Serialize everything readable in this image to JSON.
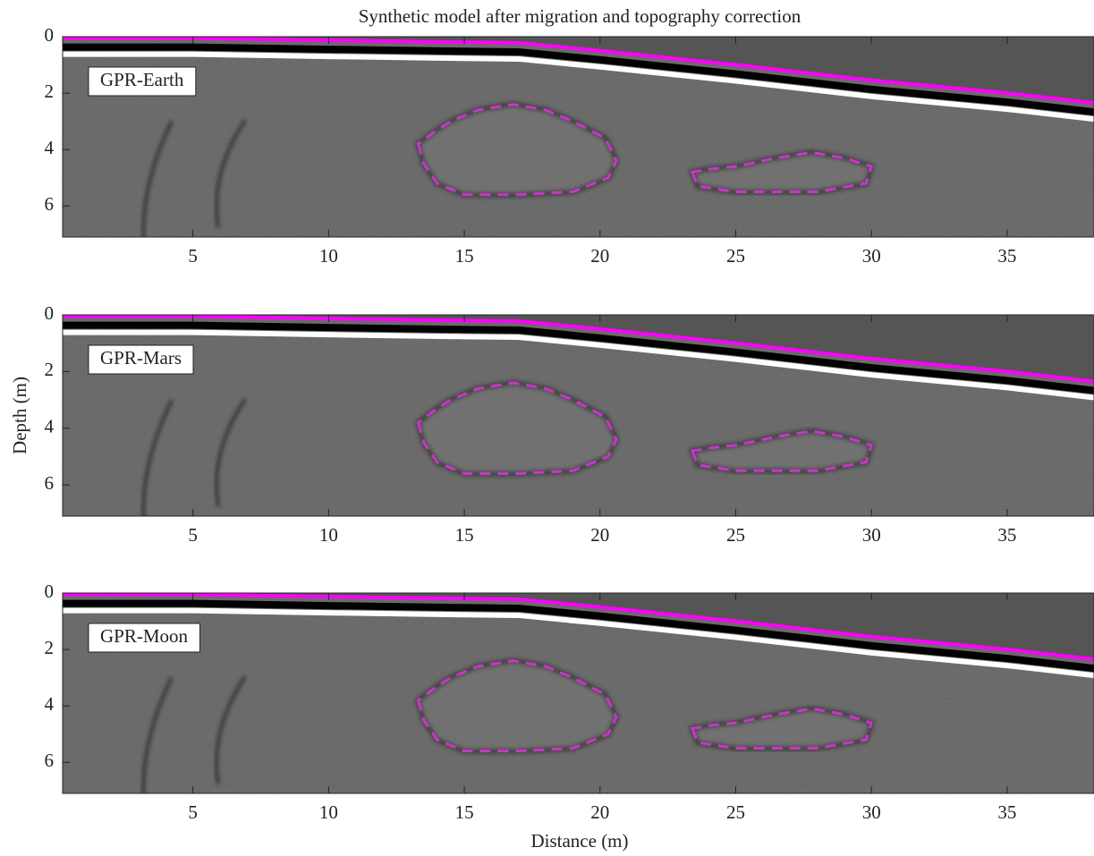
{
  "chart_data": [
    {
      "type": "radargram",
      "title": "Synthetic model after migration and topography correction",
      "label": "GPR-Earth",
      "xlim": [
        0.2,
        38.2
      ],
      "ylim": [
        0,
        7.1
      ],
      "yreverse": true,
      "xticks": [
        5,
        10,
        15,
        20,
        25,
        30,
        35
      ],
      "yticks": [
        0,
        2,
        4,
        6
      ],
      "surface": {
        "color": "#ff00ff",
        "x": [
          0.2,
          5,
          10,
          15,
          17,
          20,
          25,
          30,
          35,
          38.2
        ],
        "y": [
          0.05,
          0.05,
          0.13,
          0.2,
          0.22,
          0.5,
          1.0,
          1.55,
          2.0,
          2.35
        ]
      },
      "outlines": [
        {
          "color": "#cc33cc",
          "x": [
            13.3,
            13.5,
            14,
            15,
            17,
            19,
            20.3,
            20.6,
            20.2,
            19,
            18,
            16.8,
            15.5,
            14.5,
            14
          ],
          "y": [
            3.8,
            4.5,
            5.2,
            5.6,
            5.6,
            5.5,
            5,
            4.4,
            3.6,
            3.0,
            2.6,
            2.4,
            2.6,
            3.0,
            3.3
          ]
        },
        {
          "color": "#cc33cc",
          "x": [
            23.4,
            23.6,
            25,
            28,
            29.8,
            30,
            29,
            27.8,
            26.5,
            25,
            24
          ],
          "y": [
            4.8,
            5.3,
            5.5,
            5.5,
            5.2,
            4.6,
            4.3,
            4.1,
            4.3,
            4.6,
            4.7
          ]
        }
      ]
    },
    {
      "type": "radargram",
      "label": "GPR-Mars",
      "ylabel": "Depth (m)",
      "xlim": [
        0.2,
        38.2
      ],
      "ylim": [
        0,
        7.1
      ],
      "yreverse": true,
      "xticks": [
        5,
        10,
        15,
        20,
        25,
        30,
        35
      ],
      "yticks": [
        0,
        2,
        4,
        6
      ],
      "surface": {
        "color": "#ff00ff",
        "x": [
          0.2,
          5,
          10,
          15,
          17,
          20,
          25,
          30,
          35,
          38.2
        ],
        "y": [
          0.05,
          0.05,
          0.13,
          0.2,
          0.22,
          0.5,
          1.0,
          1.55,
          2.0,
          2.35
        ]
      },
      "outlines": [
        {
          "color": "#cc33cc",
          "x": [
            13.3,
            13.5,
            14,
            15,
            17,
            19,
            20.3,
            20.6,
            20.2,
            19,
            18,
            16.8,
            15.5,
            14.5,
            14
          ],
          "y": [
            3.8,
            4.5,
            5.2,
            5.6,
            5.6,
            5.5,
            5,
            4.4,
            3.6,
            3.0,
            2.6,
            2.4,
            2.6,
            3.0,
            3.3
          ]
        },
        {
          "color": "#cc33cc",
          "x": [
            23.4,
            23.6,
            25,
            28,
            29.8,
            30,
            29,
            27.8,
            26.5,
            25,
            24
          ],
          "y": [
            4.8,
            5.3,
            5.5,
            5.5,
            5.2,
            4.6,
            4.3,
            4.1,
            4.3,
            4.6,
            4.7
          ]
        }
      ]
    },
    {
      "type": "radargram",
      "label": "GPR-Moon",
      "xlabel": "Distance (m)",
      "xlim": [
        0.2,
        38.2
      ],
      "ylim": [
        0,
        7.1
      ],
      "yreverse": true,
      "xticks": [
        5,
        10,
        15,
        20,
        25,
        30,
        35
      ],
      "yticks": [
        0,
        2,
        4,
        6
      ],
      "surface": {
        "color": "#ff00ff",
        "x": [
          0.2,
          5,
          10,
          15,
          17,
          20,
          25,
          30,
          35,
          38.2
        ],
        "y": [
          0.05,
          0.05,
          0.13,
          0.2,
          0.22,
          0.5,
          1.0,
          1.55,
          2.0,
          2.35
        ]
      },
      "outlines": [
        {
          "color": "#cc33cc",
          "x": [
            13.3,
            13.5,
            14,
            15,
            17,
            19,
            20.3,
            20.6,
            20.2,
            19,
            18,
            16.8,
            15.5,
            14.5,
            14
          ],
          "y": [
            3.8,
            4.5,
            5.2,
            5.6,
            5.6,
            5.5,
            5,
            4.4,
            3.6,
            3.0,
            2.6,
            2.4,
            2.6,
            3.0,
            3.3
          ]
        },
        {
          "color": "#cc33cc",
          "x": [
            23.4,
            23.6,
            25,
            28,
            29.8,
            30,
            29,
            27.8,
            26.5,
            25,
            24
          ],
          "y": [
            4.8,
            5.3,
            5.5,
            5.5,
            5.2,
            4.6,
            4.3,
            4.1,
            4.3,
            4.6,
            4.7
          ]
        }
      ]
    }
  ]
}
